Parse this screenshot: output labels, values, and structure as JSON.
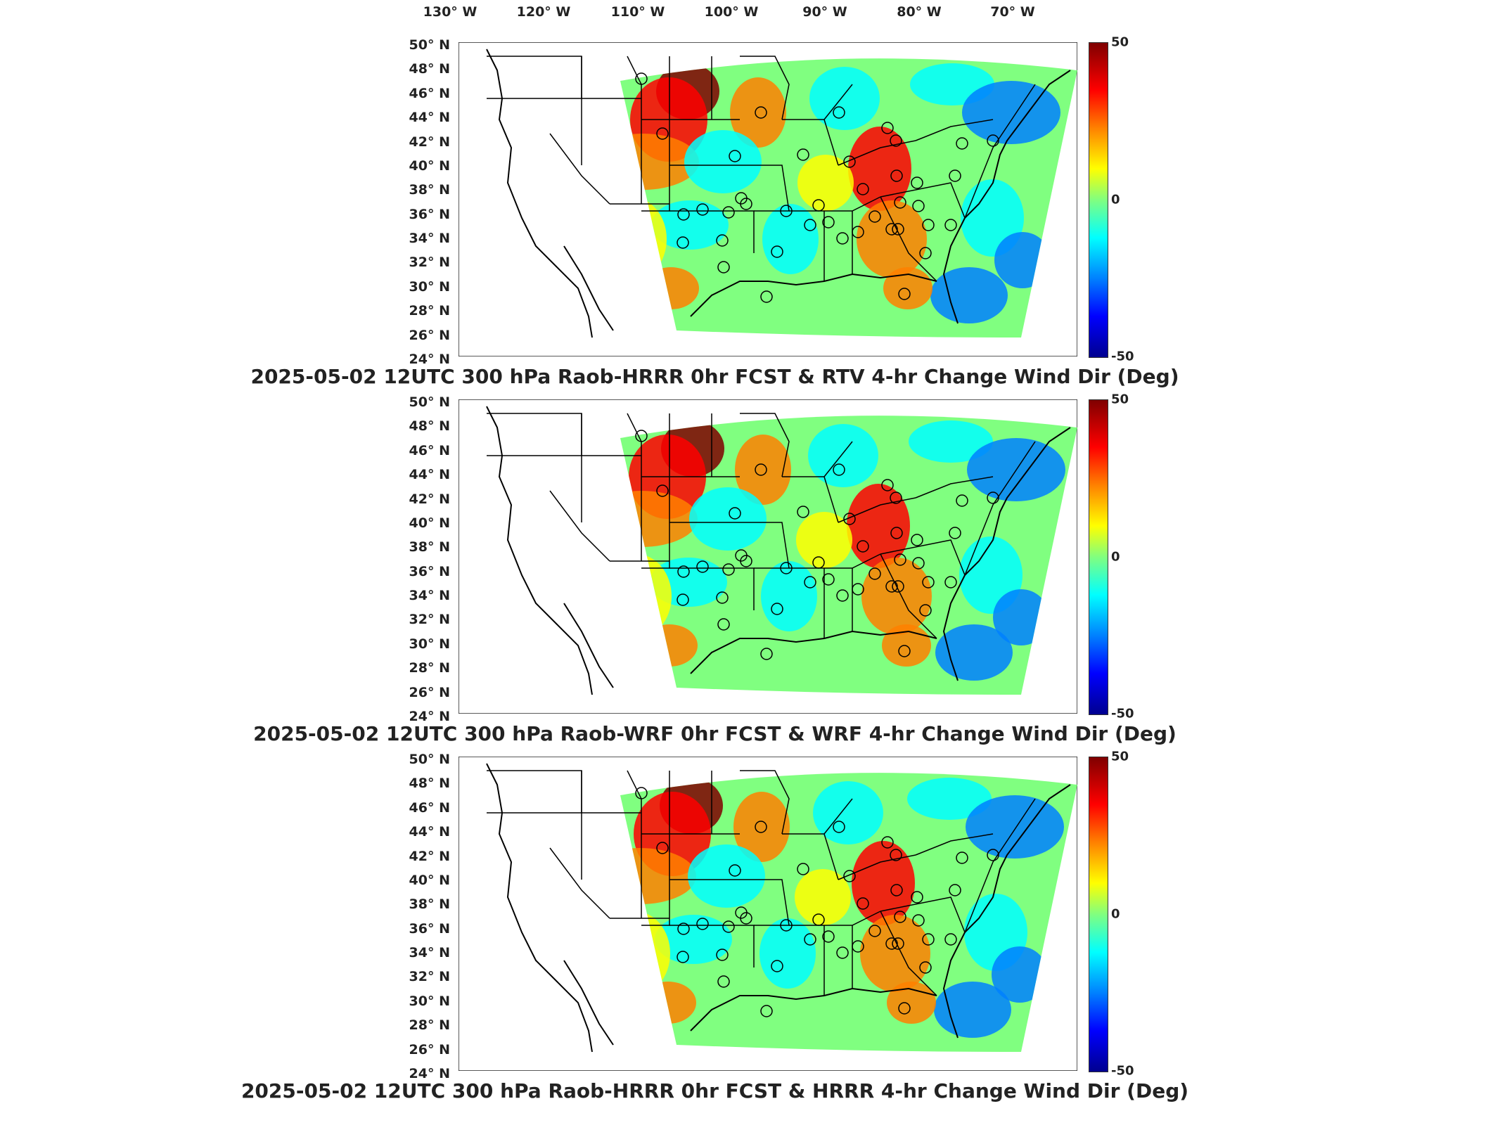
{
  "longitude_labels": [
    "130° W",
    "120° W",
    "110° W",
    "100° W",
    "90° W",
    "80° W",
    "70° W"
  ],
  "latitude_labels": [
    "50° N",
    "48° N",
    "46° N",
    "44° N",
    "42° N",
    "40° N",
    "38° N",
    "36° N",
    "34° N",
    "32° N",
    "30° N",
    "28° N",
    "26° N",
    "24° N"
  ],
  "colorbar": {
    "max_label": "50",
    "mid_label": "0",
    "min_label": "-50",
    "min": -50,
    "max": 50
  },
  "panels": [
    {
      "title": "2025-05-02 12UTC 300 hPa Raob-HRRR 0hr FCST & RTV 4-hr Change Wind Dir (Deg)"
    },
    {
      "title": "2025-05-02 12UTC 300 hPa Raob-WRF 0hr FCST & WRF 4-hr Change Wind Dir (Deg)"
    },
    {
      "title": "2025-05-02 12UTC 300 hPa Raob-HRRR 0hr FCST & HRRR 4-hr Change Wind Dir (Deg)"
    }
  ],
  "colors": {
    "dark_red": "#7f0000",
    "red": "#ff0000",
    "orange": "#ff8000",
    "yellow": "#ffff00",
    "green": "#80ff80",
    "cyan": "#00ffff",
    "blue": "#0080ff",
    "dark_blue": "#00008f"
  }
}
